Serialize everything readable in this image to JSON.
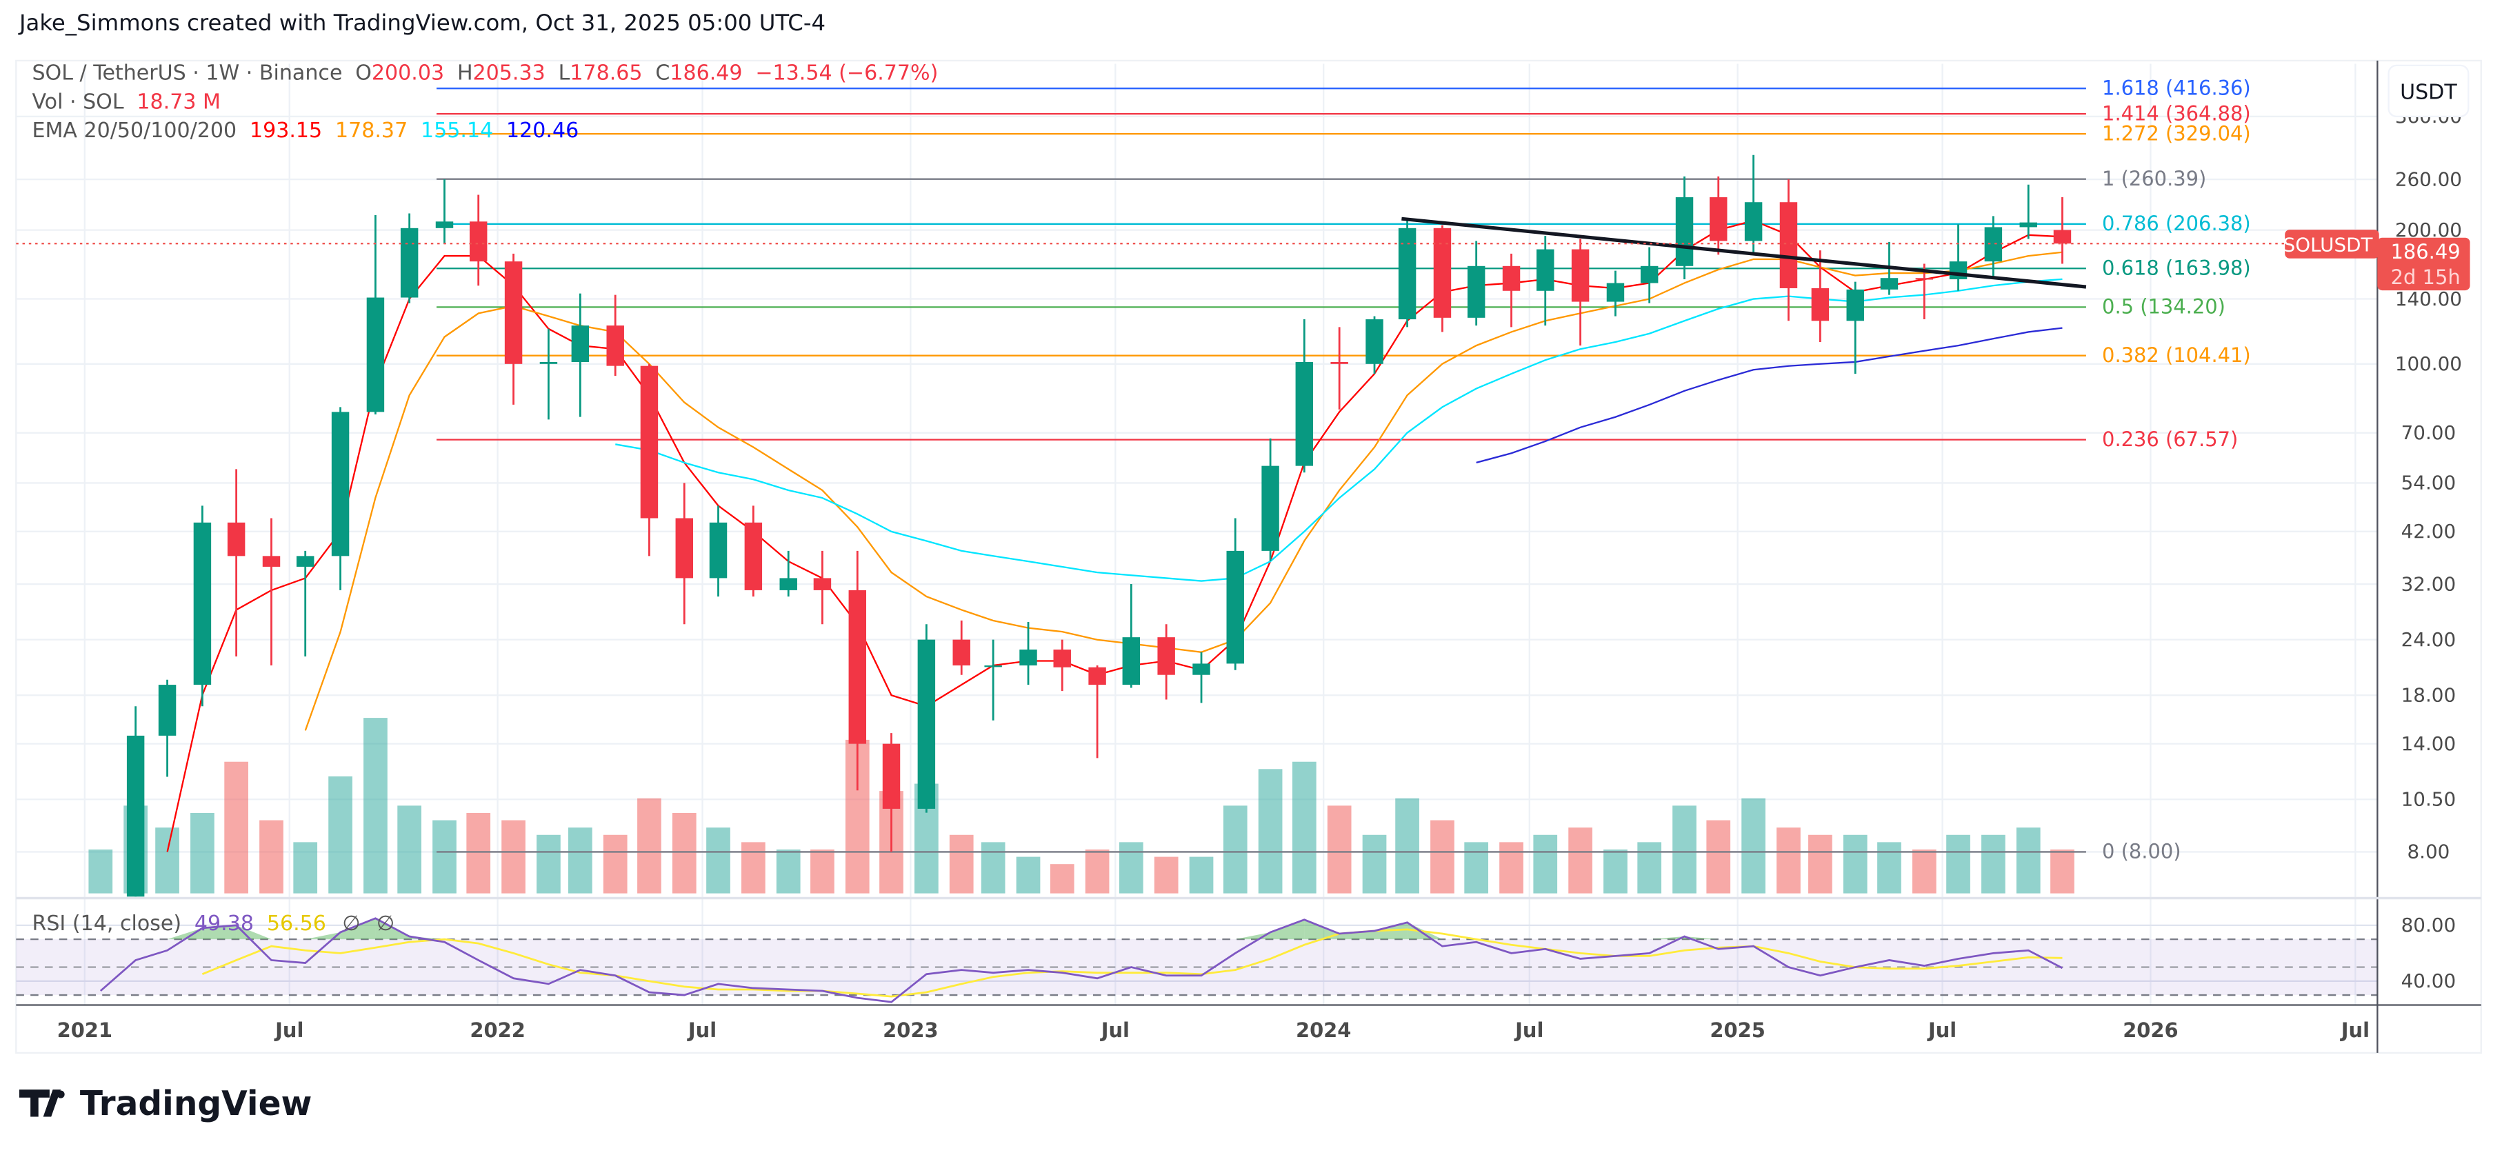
{
  "caption": "Jake_Simmons created with TradingView.com, Oct 31, 2025 05:00 UTC-4",
  "legend": {
    "symbol": "SOL / TetherUS · 1W · Binance",
    "o_label": "O",
    "o": "200.03",
    "h_label": "H",
    "h": "205.33",
    "l_label": "L",
    "l": "178.65",
    "c_label": "C",
    "c": "186.49",
    "change": "−13.54 (−6.77%)",
    "vol_label": "Vol · SOL",
    "vol": "18.73 M",
    "ema_label": "EMA 20/50/100/200",
    "ema20": "193.15",
    "ema50": "178.37",
    "ema100": "155.14",
    "ema200": "120.46",
    "rsi_label": "RSI (14, close)",
    "rsi": "49.38",
    "rsi_ma": "56.56",
    "rsi_x1": "∅",
    "rsi_x2": "∅"
  },
  "currency": "USDT",
  "last_price": {
    "symbol": "SOLUSDT",
    "price": "186.49",
    "countdown": "2d 15h",
    "value": 186.49
  },
  "logo": "TradingView",
  "colors": {
    "up": "#089981",
    "down": "#f23645",
    "ema20": "#ff0000",
    "ema50": "#ff9800",
    "ema100": "#00e5ff",
    "ema200": "#2a2ad6",
    "rsi": "#7e57c2",
    "rsi_ma": "#ffeb3b",
    "trendline": "#131722"
  },
  "chart_data": {
    "type": "candlestick",
    "y_scale": "log",
    "grid": true,
    "price_ticks": [
      "360.00",
      "260.00",
      "200.00",
      "140.00",
      "100.00",
      "70.00",
      "54.00",
      "42.00",
      "32.00",
      "24.00",
      "18.00",
      "14.00",
      "10.50",
      "8.00"
    ],
    "rsi_ticks": [
      "80.00",
      "40.00"
    ],
    "time_ticks": [
      {
        "t": "2021-01-01",
        "label": "2021"
      },
      {
        "t": "2021-07-01",
        "label": "Jul"
      },
      {
        "t": "2022-01-01",
        "label": "2022"
      },
      {
        "t": "2022-07-01",
        "label": "Jul"
      },
      {
        "t": "2023-01-01",
        "label": "2023"
      },
      {
        "t": "2023-07-01",
        "label": "Jul"
      },
      {
        "t": "2024-01-01",
        "label": "2024"
      },
      {
        "t": "2024-07-01",
        "label": "Jul"
      },
      {
        "t": "2025-01-01",
        "label": "2025"
      },
      {
        "t": "2025-07-01",
        "label": "Jul"
      },
      {
        "t": "2026-01-01",
        "label": "2026"
      },
      {
        "t": "2026-07-01",
        "label": "Jul"
      }
    ],
    "candle_fields": [
      "month",
      "open",
      "high",
      "low",
      "close",
      "volume_M",
      "ema20",
      "ema50",
      "ema100",
      "ema200",
      "rsi",
      "rsi_ma"
    ],
    "candles": [
      [
        "2021-01",
        1.8,
        4.0,
        1.5,
        3.9,
        30,
        null,
        null,
        null,
        null,
        33,
        null
      ],
      [
        "2021-02",
        3.9,
        17,
        3.6,
        14.6,
        60,
        null,
        null,
        null,
        null,
        55,
        null
      ],
      [
        "2021-03",
        14.6,
        19.5,
        11.8,
        19,
        45,
        8,
        null,
        null,
        null,
        62,
        null
      ],
      [
        "2021-04",
        19,
        48,
        17,
        44,
        55,
        18,
        null,
        null,
        null,
        78,
        45
      ],
      [
        "2021-05",
        44,
        58,
        22,
        37,
        90,
        28,
        null,
        null,
        null,
        80,
        55
      ],
      [
        "2021-06",
        37,
        45,
        21,
        35,
        50,
        31,
        null,
        null,
        null,
        55,
        65
      ],
      [
        "2021-07",
        35,
        38,
        22,
        37,
        35,
        33,
        15,
        null,
        null,
        53,
        62
      ],
      [
        "2021-08",
        37,
        80,
        31,
        78,
        80,
        42,
        25,
        null,
        null,
        75,
        60
      ],
      [
        "2021-09",
        78,
        216,
        77,
        141,
        120,
        90,
        50,
        null,
        null,
        85,
        64
      ],
      [
        "2021-10",
        141,
        218,
        137,
        202,
        60,
        140,
        85,
        null,
        null,
        72,
        68
      ],
      [
        "2021-11",
        202,
        260,
        186,
        209,
        50,
        175,
        115,
        null,
        null,
        68,
        70
      ],
      [
        "2021-12",
        209,
        240,
        150,
        170,
        55,
        175,
        130,
        null,
        null,
        55,
        67
      ],
      [
        "2022-01",
        170,
        177,
        81,
        100,
        50,
        150,
        135,
        null,
        null,
        42,
        60
      ],
      [
        "2022-02",
        100,
        120,
        75,
        101,
        40,
        120,
        128,
        null,
        null,
        38,
        52
      ],
      [
        "2022-03",
        101,
        144,
        76,
        122,
        45,
        110,
        122,
        null,
        null,
        48,
        46
      ],
      [
        "2022-04",
        122,
        143,
        94,
        99,
        40,
        108,
        118,
        66,
        null,
        44,
        44
      ],
      [
        "2022-05",
        99,
        100,
        37,
        45,
        65,
        85,
        100,
        64,
        null,
        32,
        40
      ],
      [
        "2022-06",
        45,
        54,
        26,
        33,
        55,
        60,
        82,
        60,
        null,
        30,
        36
      ],
      [
        "2022-07",
        33,
        48,
        30,
        44,
        45,
        48,
        72,
        57,
        null,
        38,
        34
      ],
      [
        "2022-08",
        44,
        48,
        30,
        31,
        35,
        42,
        65,
        55,
        null,
        35,
        34
      ],
      [
        "2022-09",
        31,
        38,
        30,
        33,
        30,
        36,
        58,
        52,
        null,
        34,
        33
      ],
      [
        "2022-10",
        33,
        38,
        26,
        31,
        30,
        33,
        52,
        50,
        null,
        33,
        33
      ],
      [
        "2022-11",
        31,
        38,
        11,
        14,
        105,
        26,
        43,
        46,
        null,
        28,
        31
      ],
      [
        "2022-12",
        14,
        14.8,
        8,
        10,
        70,
        18,
        34,
        42,
        null,
        25,
        29
      ],
      [
        "2023-01",
        10,
        26,
        9.8,
        24,
        75,
        17,
        30,
        40,
        null,
        45,
        32
      ],
      [
        "2023-02",
        24,
        26.5,
        20,
        21,
        40,
        19,
        28,
        38,
        null,
        48,
        38
      ],
      [
        "2023-03",
        21,
        24,
        15.8,
        21,
        35,
        21,
        26.5,
        37,
        null,
        46,
        43
      ],
      [
        "2023-04",
        21,
        26.3,
        19,
        22.8,
        25,
        21.5,
        25.5,
        36,
        null,
        48,
        46
      ],
      [
        "2023-05",
        22.8,
        24,
        18.4,
        20.8,
        20,
        21.5,
        25,
        35,
        null,
        46,
        47
      ],
      [
        "2023-06",
        20.8,
        21,
        13,
        19,
        30,
        20,
        24,
        34,
        null,
        42,
        46
      ],
      [
        "2023-07",
        19,
        32,
        18.7,
        24.3,
        35,
        21,
        23.5,
        33.5,
        null,
        50,
        46
      ],
      [
        "2023-08",
        24.3,
        26,
        17.6,
        20,
        25,
        21.5,
        23,
        33,
        null,
        44,
        46
      ],
      [
        "2023-09",
        20,
        22.5,
        17.3,
        21.2,
        25,
        20.5,
        22.5,
        32.5,
        null,
        44,
        45
      ],
      [
        "2023-10",
        21.2,
        45,
        20.5,
        38,
        60,
        24,
        24,
        33,
        null,
        60,
        48
      ],
      [
        "2023-11",
        38,
        68,
        36,
        59,
        85,
        36,
        29,
        36,
        null,
        75,
        56
      ],
      [
        "2023-12",
        59,
        126,
        57,
        101,
        90,
        60,
        40,
        42,
        null,
        84,
        66
      ],
      [
        "2024-01",
        101,
        121,
        79,
        100,
        60,
        78,
        52,
        50,
        null,
        74,
        74
      ],
      [
        "2024-02",
        100,
        128,
        95,
        126,
        40,
        95,
        65,
        58,
        null,
        76,
        76
      ],
      [
        "2024-03",
        126,
        210,
        121,
        202,
        65,
        125,
        85,
        70,
        null,
        82,
        77
      ],
      [
        "2024-04",
        202,
        205,
        118,
        127,
        50,
        145,
        100,
        80,
        null,
        65,
        74
      ],
      [
        "2024-05",
        127,
        189,
        122,
        166,
        35,
        150,
        110,
        88,
        60,
        68,
        70
      ],
      [
        "2024-06",
        166,
        177,
        121,
        146,
        35,
        152,
        118,
        95,
        63,
        60,
        66
      ],
      [
        "2024-07",
        146,
        194,
        122,
        181,
        40,
        155,
        125,
        102,
        67,
        63,
        63
      ],
      [
        "2024-08",
        181,
        191,
        110,
        138,
        45,
        150,
        130,
        108,
        72,
        56,
        60
      ],
      [
        "2024-09",
        138,
        162,
        128,
        152,
        30,
        148,
        135,
        112,
        76,
        58,
        58
      ],
      [
        "2024-10",
        152,
        183,
        137,
        166,
        35,
        152,
        140,
        117,
        81,
        60,
        58
      ],
      [
        "2024-11",
        166,
        264,
        155,
        237,
        60,
        180,
        152,
        125,
        87,
        72,
        62
      ],
      [
        "2024-12",
        237,
        264,
        176,
        189,
        50,
        200,
        163,
        133,
        92,
        63,
        64
      ],
      [
        "2025-01",
        189,
        295,
        177,
        231,
        65,
        210,
        172,
        140,
        97,
        65,
        65
      ],
      [
        "2025-02",
        231,
        260,
        125,
        148,
        45,
        195,
        172,
        142,
        99,
        50,
        60
      ],
      [
        "2025-03",
        148,
        180,
        112,
        125,
        40,
        165,
        165,
        140,
        100,
        44,
        54
      ],
      [
        "2025-04",
        125,
        153,
        95,
        147,
        40,
        145,
        158,
        138,
        101,
        50,
        50
      ],
      [
        "2025-05",
        147,
        188,
        143,
        156,
        35,
        150,
        160,
        141,
        104,
        55,
        49
      ],
      [
        "2025-06",
        156,
        168,
        126,
        155,
        30,
        155,
        160,
        143,
        107,
        51,
        49
      ],
      [
        "2025-07",
        155,
        206,
        146,
        170,
        40,
        160,
        162,
        146,
        110,
        56,
        51
      ],
      [
        "2025-08",
        170,
        215,
        155,
        203,
        40,
        178,
        168,
        150,
        114,
        60,
        54
      ],
      [
        "2025-09",
        203,
        253,
        191,
        208,
        45,
        195,
        175,
        153,
        118,
        62,
        57
      ],
      [
        "2025-10",
        200.03,
        237,
        168,
        186.49,
        30,
        193.15,
        178.37,
        155.14,
        120.46,
        49.38,
        56.56
      ]
    ],
    "fib_start": "2021-11-08",
    "fib_end": "2025-11-05",
    "fib_levels": [
      {
        "label": "1.618 (416.36)",
        "price": 416.36,
        "color": "#2962ff"
      },
      {
        "label": "1.414 (364.88)",
        "price": 364.88,
        "color": "#f23645"
      },
      {
        "label": "1.272 (329.04)",
        "price": 329.04,
        "color": "#ff9800"
      },
      {
        "label": "1 (260.39)",
        "price": 260.39,
        "color": "#787b86"
      },
      {
        "label": "0.786 (206.38)",
        "price": 206.38,
        "color": "#00bcd4"
      },
      {
        "label": "0.618 (163.98)",
        "price": 163.98,
        "color": "#089981"
      },
      {
        "label": "0.5 (134.20)",
        "price": 134.2,
        "color": "#4caf50"
      },
      {
        "label": "0.382 (104.41)",
        "price": 104.41,
        "color": "#ff9800"
      },
      {
        "label": "0.236 (67.57)",
        "price": 67.57,
        "color": "#f23645"
      },
      {
        "label": "0 (8.00)",
        "price": 8.0,
        "color": "#787b86"
      }
    ],
    "trendline": {
      "start": {
        "t": "2024-03-10",
        "price": 212
      },
      "end": {
        "t": "2025-11-05",
        "price": 149
      }
    },
    "rsi_bands": {
      "upper": 70,
      "middle": 50,
      "lower": 30
    }
  }
}
